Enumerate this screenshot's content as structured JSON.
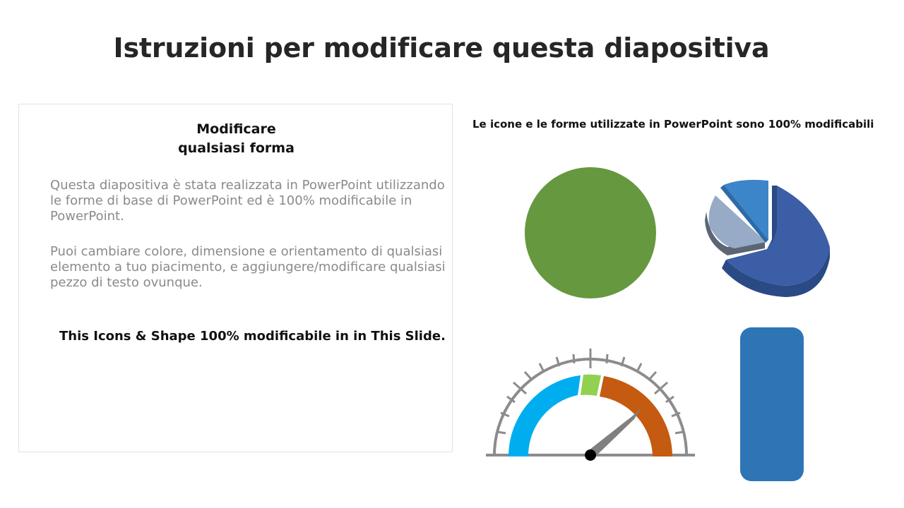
{
  "slide": {
    "title": "Istruzioni per modificare questa diapositiva"
  },
  "textbox": {
    "heading_line1": "Modificare",
    "heading_line2": "qualsiasi forma",
    "paragraph1": "Questa diapositiva è stata realizzata in PowerPoint utilizzando le forme di base di PowerPoint ed è 100% modificabile in PowerPoint.",
    "paragraph2": "Puoi cambiare colore, dimensione e orientamento di qualsiasi elemento a tuo piacimento, e aggiungere/modificare qualsiasi pezzo di testo ovunque.",
    "note": "This Icons & Shape 100% modificabile in in This Slide."
  },
  "showcase": {
    "caption": "Le icone e le forme utilizzate in PowerPoint sono 100% modificabili",
    "shapes": [
      {
        "name": "circle",
        "color": "#66983f"
      },
      {
        "name": "3d-pie",
        "colors": [
          "#3b5ea6",
          "#97aac6",
          "#3c85c9"
        ]
      },
      {
        "name": "gauge",
        "colors": [
          "#00aeef",
          "#92d050",
          "#c55a11",
          "#808080"
        ]
      },
      {
        "name": "rounded-rectangle",
        "color": "#2e75b6"
      }
    ]
  }
}
